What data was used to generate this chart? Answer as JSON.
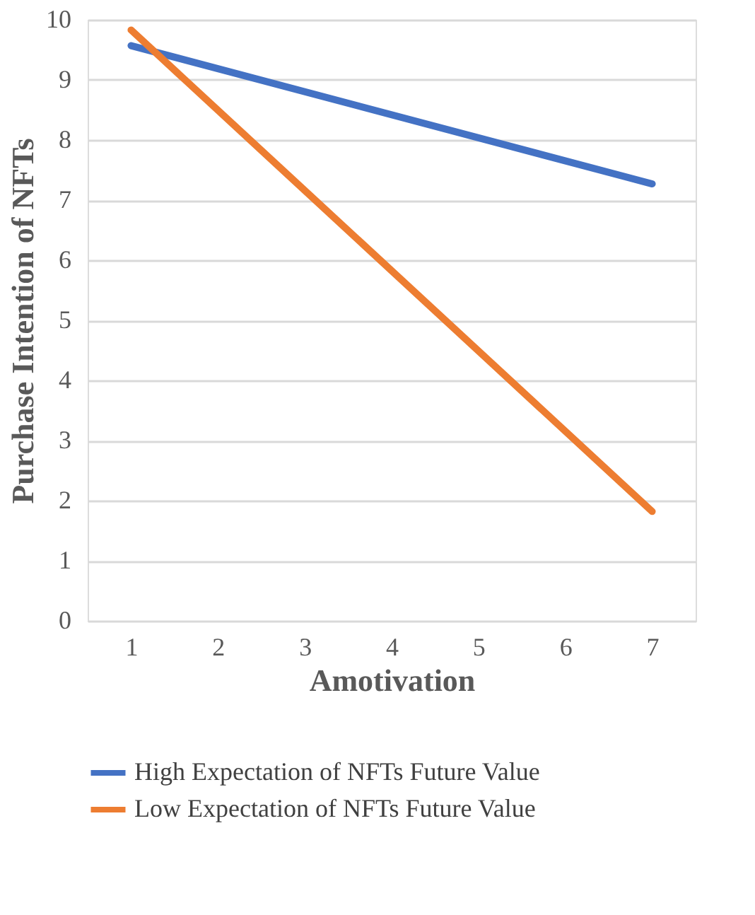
{
  "chart_data": {
    "type": "line",
    "xlabel": "Amotivation",
    "ylabel": "Purchase Intention of NFTs",
    "xlim": [
      0.5,
      7.5
    ],
    "xticks": [
      1,
      2,
      3,
      4,
      5,
      6,
      7
    ],
    "ylim": [
      0,
      10
    ],
    "yticks": [
      0,
      1,
      2,
      3,
      4,
      5,
      6,
      7,
      8,
      9,
      10
    ],
    "x": [
      1,
      7
    ],
    "grid": "y",
    "line_style": "solid",
    "legend": "bottom",
    "marker": "none",
    "series": [
      {
        "name": "High Expectation of NFTs Future Value",
        "color": "#4472c4",
        "values": [
          9.57,
          7.27
        ]
      },
      {
        "name": "Low Expectation of NFTs Future Value",
        "color": "#ed7d31",
        "values": [
          9.83,
          1.82
        ]
      }
    ]
  }
}
